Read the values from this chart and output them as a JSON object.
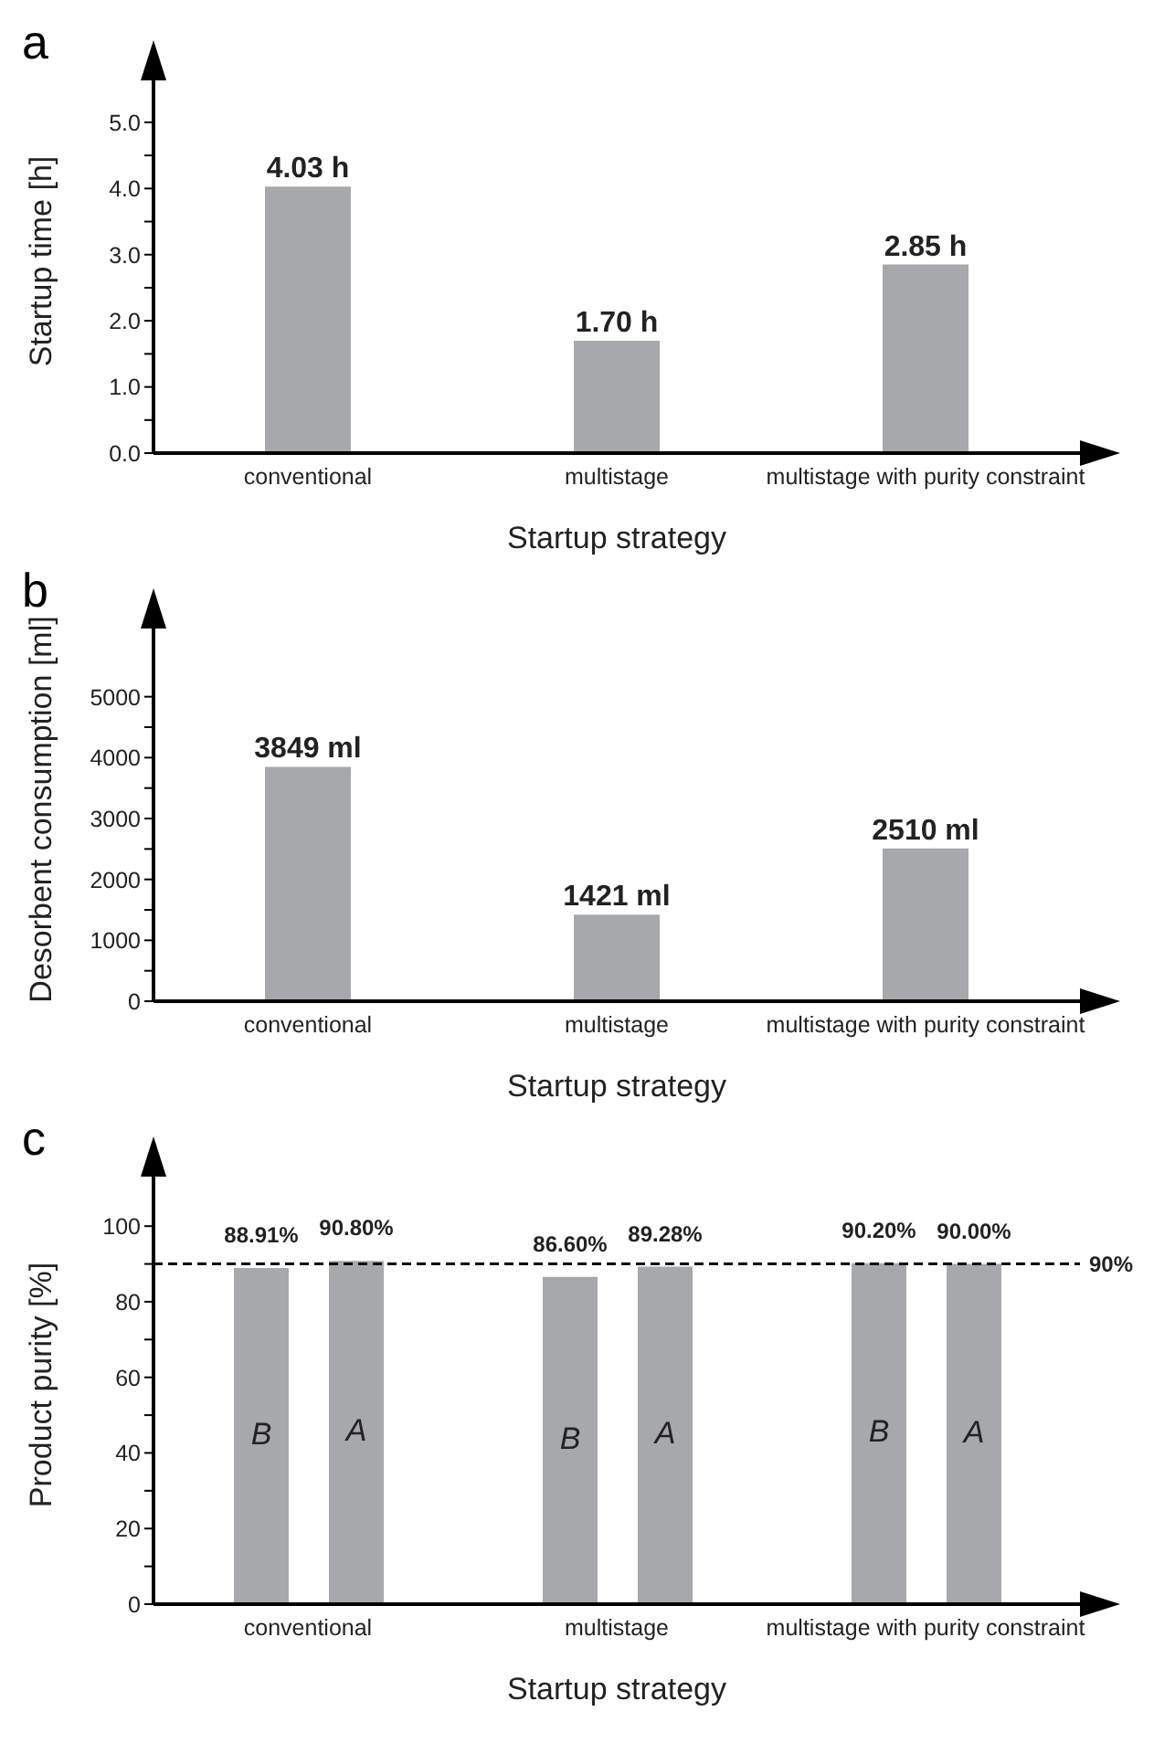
{
  "chart_data": [
    {
      "type": "bar",
      "title": "a",
      "xlabel": "Startup strategy",
      "ylabel": "Startup time [h]",
      "categories": [
        "conventional",
        "multistage",
        "multistage with purity constraint"
      ],
      "values": [
        4.03,
        1.7,
        2.85
      ],
      "value_labels": [
        "4.03 h",
        "1.70 h",
        "2.85 h"
      ],
      "color": "#a7a8ab",
      "ylim": [
        0,
        5.8
      ],
      "yticks": [
        {
          "value": 0,
          "label": "0.0"
        },
        {
          "value": 0.5,
          "label": null
        },
        {
          "value": 1,
          "label": "1.0"
        },
        {
          "value": 1.5,
          "label": null
        },
        {
          "value": 2,
          "label": "2.0"
        },
        {
          "value": 2.5,
          "label": null
        },
        {
          "value": 3,
          "label": "3.0"
        },
        {
          "value": 3.5,
          "label": null
        },
        {
          "value": 4,
          "label": "4.0"
        },
        {
          "value": 4.5,
          "label": null
        },
        {
          "value": 5,
          "label": "5.0"
        }
      ]
    },
    {
      "type": "bar",
      "title": "b",
      "xlabel": "Startup strategy",
      "ylabel": "Desorbent consumption [ml]",
      "categories": [
        "conventional",
        "multistage",
        "multistage with purity constraint"
      ],
      "values": [
        3849,
        1421,
        2510
      ],
      "value_labels": [
        "3849 ml",
        "1421 ml",
        "2510 ml"
      ],
      "color": "#a7a8ab",
      "ylim": [
        0,
        6300
      ],
      "yticks": [
        0,
        {
          "value": 500,
          "label": null
        },
        1000,
        {
          "value": 1500,
          "label": null
        },
        2000,
        {
          "value": 2500,
          "label": null
        },
        3000,
        {
          "value": 3500,
          "label": null
        },
        4000,
        {
          "value": 4500,
          "label": null
        },
        5000
      ]
    },
    {
      "type": "bar",
      "title": "c",
      "xlabel": "Startup strategy",
      "ylabel": "Product purity [%]",
      "categories": [
        "conventional",
        "multistage",
        "multistage with purity constraint"
      ],
      "ylim": [
        0,
        116
      ],
      "series": [
        {
          "name": "B",
          "color": "#a7a8ab",
          "values": [
            88.91,
            86.6,
            90.2
          ],
          "value_labels": [
            "88.91%",
            "86.60%",
            "90.20%"
          ]
        },
        {
          "name": "A",
          "color": "#a7a8ab",
          "values": [
            90.8,
            89.28,
            90.0
          ],
          "value_labels": [
            "90.80%",
            "89.28%",
            "90.00%"
          ]
        }
      ],
      "yticks": [
        0,
        {
          "value": 10,
          "label": null
        },
        20,
        {
          "value": 30,
          "label": null
        },
        40,
        {
          "value": 50,
          "label": null
        },
        60,
        {
          "value": 70,
          "label": null
        },
        80,
        {
          "value": 90,
          "label": null
        },
        100
      ],
      "ref_lines": [
        {
          "axis": "y",
          "value": 90,
          "label": "90%",
          "color": "#000000",
          "line_style": "dashed"
        }
      ]
    }
  ]
}
